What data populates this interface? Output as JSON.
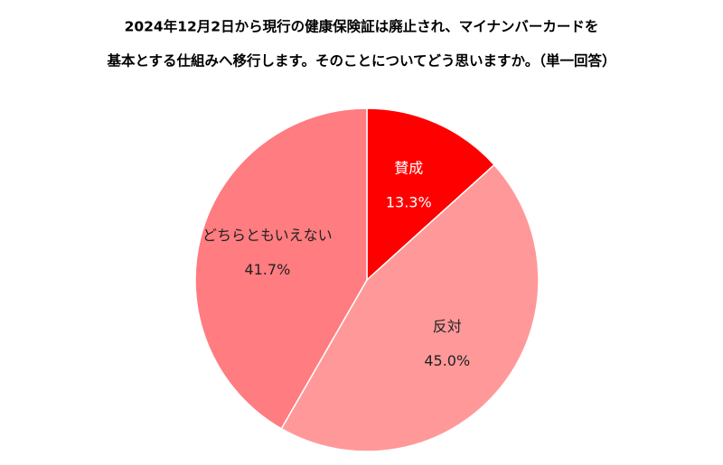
{
  "chart_data": {
    "type": "pie",
    "title": [
      "2024年12月2日から現行の健康保険証は廃止され、マイナンバーカードを",
      "基本とする仕組みへ移行します。そのことについてどう思いますか。（単一回答）"
    ],
    "categories": [
      "賛成",
      "反対",
      "どちらともいえない"
    ],
    "values": [
      13.3,
      45.0,
      41.7
    ],
    "value_labels": [
      "13.3%",
      "45.0%",
      "41.7%"
    ],
    "colors": [
      "#ff0000",
      "#ff9999",
      "#ff7c80"
    ]
  }
}
